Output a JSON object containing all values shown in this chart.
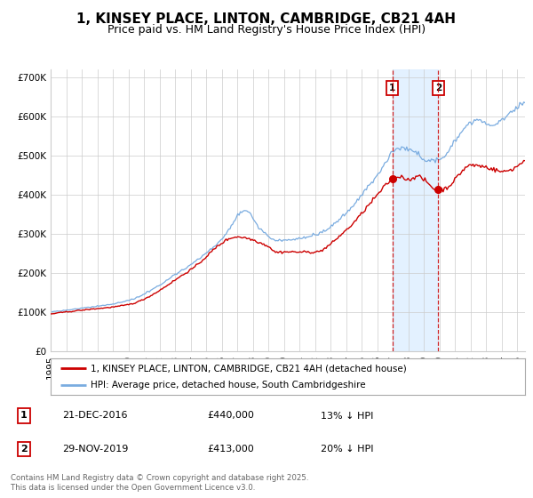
{
  "title": "1, KINSEY PLACE, LINTON, CAMBRIDGE, CB21 4AH",
  "subtitle": "Price paid vs. HM Land Registry's House Price Index (HPI)",
  "ylim": [
    0,
    720000
  ],
  "yticks": [
    0,
    100000,
    200000,
    300000,
    400000,
    500000,
    600000,
    700000
  ],
  "ytick_labels": [
    "£0",
    "£100K",
    "£200K",
    "£300K",
    "£400K",
    "£500K",
    "£600K",
    "£700K"
  ],
  "xlim_start": 1995.0,
  "xlim_end": 2025.5,
  "line1_color": "#cc0000",
  "line2_color": "#7aace0",
  "vline1_x": 2016.97,
  "vline2_x": 2019.92,
  "vline_color": "#cc0000",
  "shade_color": "#ddeeff",
  "marker1_x": 2016.97,
  "marker1_y": 440000,
  "marker2_x": 2019.92,
  "marker2_y": 413000,
  "legend_line1": "1, KINSEY PLACE, LINTON, CAMBRIDGE, CB21 4AH (detached house)",
  "legend_line2": "HPI: Average price, detached house, South Cambridgeshire",
  "sale1_label": "1",
  "sale2_label": "2",
  "sale1_date": "21-DEC-2016",
  "sale1_price": "£440,000",
  "sale1_hpi": "13% ↓ HPI",
  "sale2_date": "29-NOV-2019",
  "sale2_price": "£413,000",
  "sale2_hpi": "20% ↓ HPI",
  "footer": "Contains HM Land Registry data © Crown copyright and database right 2025.\nThis data is licensed under the Open Government Licence v3.0.",
  "bg_color": "#ffffff",
  "grid_color": "#cccccc",
  "title_fontsize": 11,
  "subtitle_fontsize": 9,
  "tick_fontsize": 7.5
}
